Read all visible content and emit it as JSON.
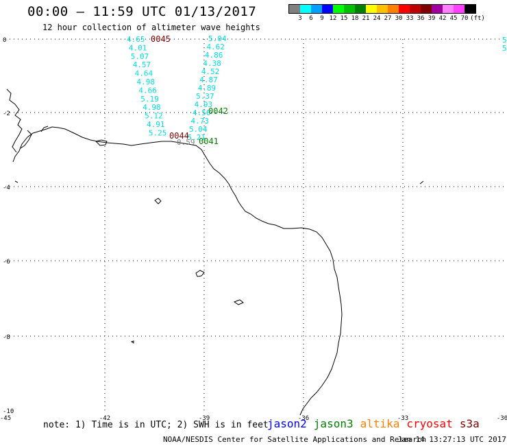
{
  "header": {
    "title": "00:00 – 11:59 UTC 01/13/2017",
    "subtitle": "12 hour collection of altimeter wave heights"
  },
  "legend": {
    "unit": "(ft)",
    "bins": [
      {
        "label": "3",
        "color": "#808080"
      },
      {
        "label": "6",
        "color": "#00ffff"
      },
      {
        "label": "9",
        "color": "#00a0ff"
      },
      {
        "label": "12",
        "color": "#0000ff"
      },
      {
        "label": "15",
        "color": "#00ff00"
      },
      {
        "label": "18",
        "color": "#00c000"
      },
      {
        "label": "21",
        "color": "#008000"
      },
      {
        "label": "24",
        "color": "#ffff00"
      },
      {
        "label": "27",
        "color": "#ffc000"
      },
      {
        "label": "30",
        "color": "#ff8000"
      },
      {
        "label": "33",
        "color": "#ff0000"
      },
      {
        "label": "36",
        "color": "#c00000"
      },
      {
        "label": "39",
        "color": "#800000"
      },
      {
        "label": "42",
        "color": "#a000a0"
      },
      {
        "label": "45",
        "color": "#ff80ff"
      },
      {
        "label": "70",
        "color": "#ff40ff"
      },
      {
        "label": "",
        "color": "#000000"
      }
    ]
  },
  "axes": {
    "x_ticks": [
      "-45",
      "-42",
      "-39",
      "-36",
      "-33",
      "-30"
    ],
    "y_ticks": [
      "0",
      "-2",
      "-4",
      "-6",
      "-8",
      "-10"
    ]
  },
  "tracks": [
    {
      "time_label": "0045",
      "time_color": "#800000",
      "values": [
        "4.65",
        "4.01",
        "5.07",
        "4.57",
        "4.64",
        "4.98",
        "4.66",
        "5.19",
        "4.98",
        "5.12",
        "4.91",
        "5.25"
      ],
      "value_color": "#00e0e0"
    },
    {
      "time_label": "0042",
      "time_color": "#008000",
      "values": [
        "5.04",
        "4.62",
        "4.86",
        "4.38",
        "4.52",
        "4.87",
        "4.89",
        "5.37",
        "4.93",
        "4.50",
        "4.73",
        "5.04",
        "5.21"
      ],
      "value_color": "#00e0e0"
    },
    {
      "time_label": "0044",
      "time_color": "#800000",
      "values": [
        "0.59"
      ],
      "value_color": "#808080"
    },
    {
      "time_label": "0041",
      "time_color": "#008000",
      "values": [],
      "value_color": "#00e0e0"
    },
    {
      "time_label": "",
      "time_color": "#008000",
      "values": [
        "5",
        "5"
      ],
      "value_color": "#00e0e0"
    }
  ],
  "footer": {
    "note": "note: 1) Time is in UTC; 2) SWH is in feet",
    "missions": [
      {
        "name": "jason2",
        "color": "#0000ff"
      },
      {
        "name": "jason3",
        "color": "#008000"
      },
      {
        "name": "altika",
        "color": "#ff8000"
      },
      {
        "name": "cryosat",
        "color": "#ff0000"
      },
      {
        "name": "s3a",
        "color": "#800000"
      }
    ],
    "credit": "NOAA/NESDIS Center for Satellite Applications and Research",
    "generated": "Jan 14 13:27:13 UTC 2017"
  }
}
